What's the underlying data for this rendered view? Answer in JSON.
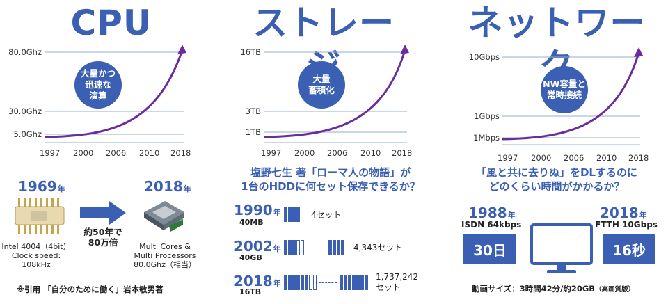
{
  "cpu": {
    "title": "CPU",
    "y_labels": [
      "80.0Ghz",
      "30.0Ghz",
      "5.0Ghz"
    ],
    "x_labels": [
      "1997",
      "2000",
      "2006",
      "2010",
      "2018"
    ],
    "circle_text": "大量かつ\n迅速な\n演算",
    "year_from": "1969",
    "year_to": "2018",
    "year_suffix": "年",
    "arrow_text": "約50年で\n80万倍",
    "chip_old_caption": "Intel 4004（4bit）\nClock speed:\n108kHz",
    "chip_new_caption": "Multi Cores &\nMulti Processors\n80.0Ghz（相当）",
    "citation": "※引用 「自分のために働く」岩本敏男著"
  },
  "storage": {
    "title": "ストレージ",
    "y_labels": [
      "16TB",
      "3TB",
      "1TB"
    ],
    "x_labels": [
      "1997",
      "2000",
      "2006",
      "2010",
      "2018"
    ],
    "circle_text": "大量\n蓄積化",
    "question": "塩野七生 著「ローマ人の物語」が\n1台のHDDに何セット保存できるか？",
    "rows": [
      {
        "year": "1990",
        "suffix": "年",
        "size": "40MB",
        "count": "4セット"
      },
      {
        "year": "2002",
        "suffix": "年",
        "size": "40GB",
        "count": "4,343セット"
      },
      {
        "year": "2018",
        "suffix": "年",
        "size": "16TB",
        "count": "1,737,242\nセット"
      }
    ]
  },
  "network": {
    "title": "ネットワーク",
    "y_labels": [
      "10Gbps",
      "1Gbps",
      "1Mbps"
    ],
    "x_labels": [
      "1997",
      "2000",
      "2006",
      "2010",
      "2018"
    ],
    "circle_text": "NW容量と\n常時接続",
    "question": "「風と共に去りぬ」をDLするのに\nどのくらい時間がかかるか？",
    "left_year": "1988",
    "left_line": "ISDN 64kbps",
    "left_time": "30日",
    "right_year": "2018",
    "right_line": "FTTH 10Gbps",
    "right_time": "16秒",
    "year_suffix": "年",
    "footer": "動画サイズ：3時間42分/約20GB",
    "footer_note": "（高画質版）"
  },
  "colors": {
    "accent": "#3a5fb3",
    "curve": "#6b2c9c",
    "grid": "#9aaed3"
  }
}
